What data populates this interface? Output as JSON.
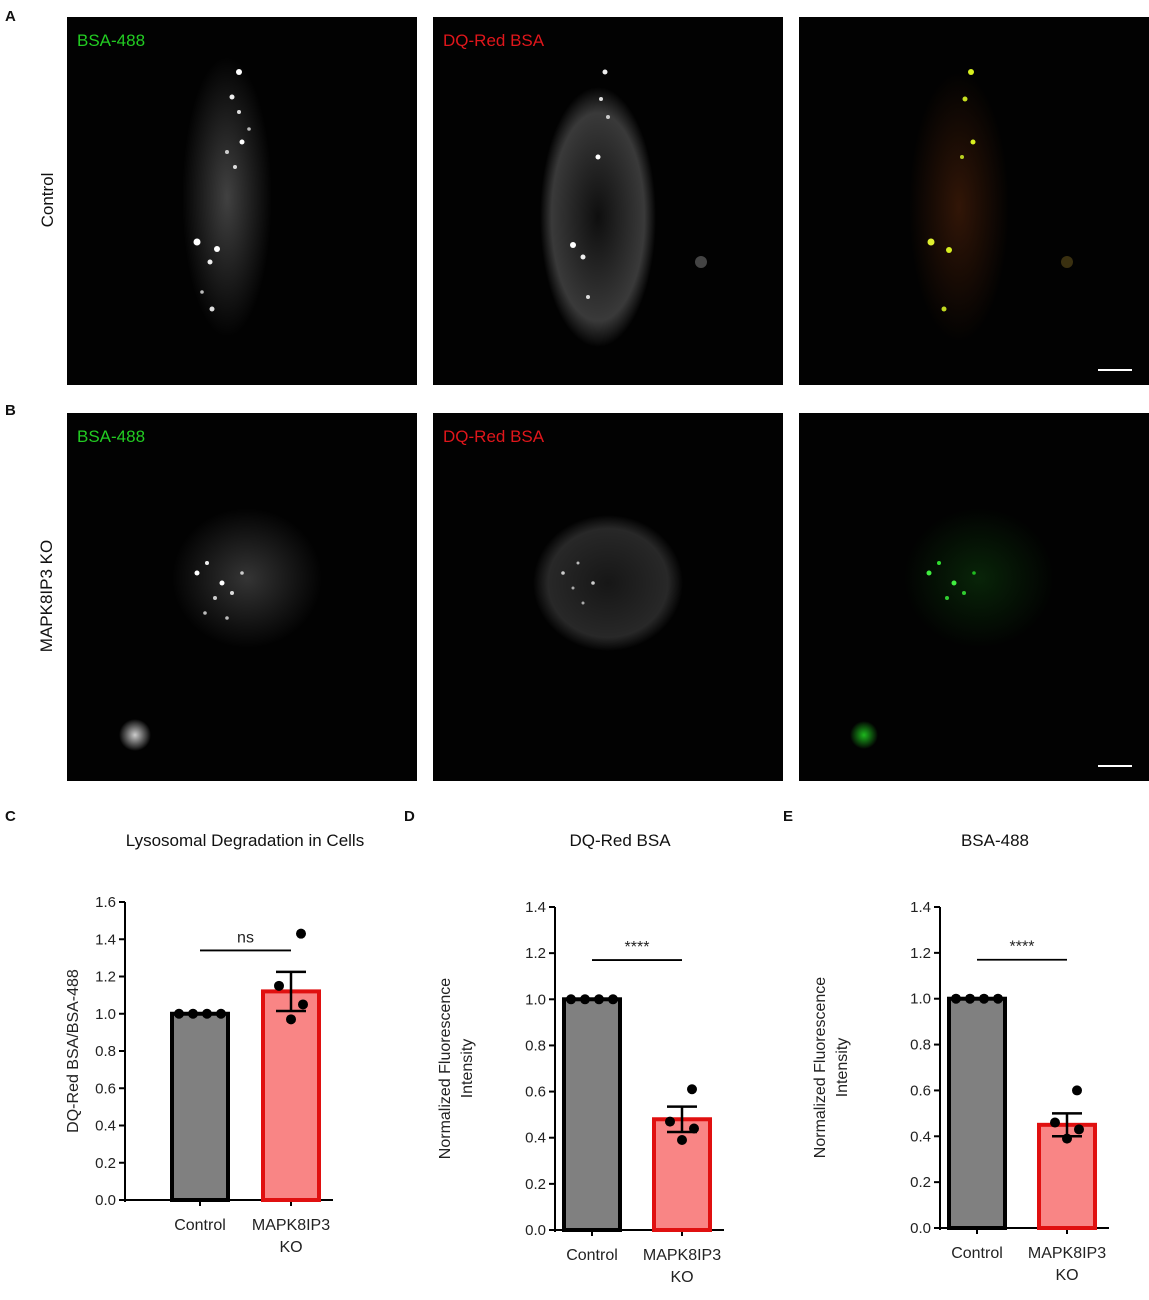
{
  "panels": {
    "a_letter": "A",
    "b_letter": "B",
    "c_letter": "C",
    "d_letter": "D",
    "e_letter": "E"
  },
  "rows": {
    "control_label": "Control",
    "ko_label": "MAPK8IP3 KO"
  },
  "channels": {
    "green_label": "BSA-488",
    "red_label": "DQ-Red BSA",
    "green_color": "#22cc22",
    "red_color": "#e0161b"
  },
  "colors": {
    "control_bar": "#808080",
    "ko_bar": "#f98585",
    "ko_bar_border": "#e01010",
    "bar_border": "#000000"
  },
  "chart_data": [
    {
      "type": "bar",
      "title": "Lysosomal Degradation in Cells",
      "categories": [
        "Control",
        "MAPK8IP3 KO"
      ],
      "values": [
        1.0,
        1.12
      ],
      "sem": [
        0.0,
        0.105
      ],
      "points": [
        [
          1.0,
          1.0,
          1.0,
          1.0
        ],
        [
          1.43,
          1.15,
          1.05,
          0.97
        ]
      ],
      "ylabel": "DQ-Red BSA/BSA-488",
      "ylim": [
        0,
        1.6
      ],
      "yticks": [
        "0.0",
        "0.2",
        "0.4",
        "0.6",
        "0.8",
        "1.0",
        "1.2",
        "1.4",
        "1.6"
      ],
      "significance": "ns"
    },
    {
      "type": "bar",
      "title": "DQ-Red BSA",
      "categories": [
        "Control",
        "MAPK8IP3 KO"
      ],
      "values": [
        1.0,
        0.48
      ],
      "sem": [
        0.0,
        0.055
      ],
      "points": [
        [
          1.0,
          1.0,
          1.0,
          1.0
        ],
        [
          0.61,
          0.47,
          0.44,
          0.39
        ]
      ],
      "ylabel": "Normalized Fluorescence Intensity",
      "ylim": [
        0,
        1.4
      ],
      "yticks": [
        "0.0",
        "0.2",
        "0.4",
        "0.6",
        "0.8",
        "1.0",
        "1.2",
        "1.4"
      ],
      "significance": "****"
    },
    {
      "type": "bar",
      "title": "BSA-488",
      "categories": [
        "Control",
        "MAPK8IP3 KO"
      ],
      "values": [
        1.0,
        0.45
      ],
      "sem": [
        0.0,
        0.05
      ],
      "points": [
        [
          1.0,
          1.0,
          1.0,
          1.0
        ],
        [
          0.6,
          0.46,
          0.43,
          0.39
        ]
      ],
      "ylabel": "Normalized Fluorescence Intensity",
      "ylim": [
        0,
        1.4
      ],
      "yticks": [
        "0.0",
        "0.2",
        "0.4",
        "0.6",
        "0.8",
        "1.0",
        "1.2",
        "1.4"
      ],
      "significance": "****"
    }
  ]
}
